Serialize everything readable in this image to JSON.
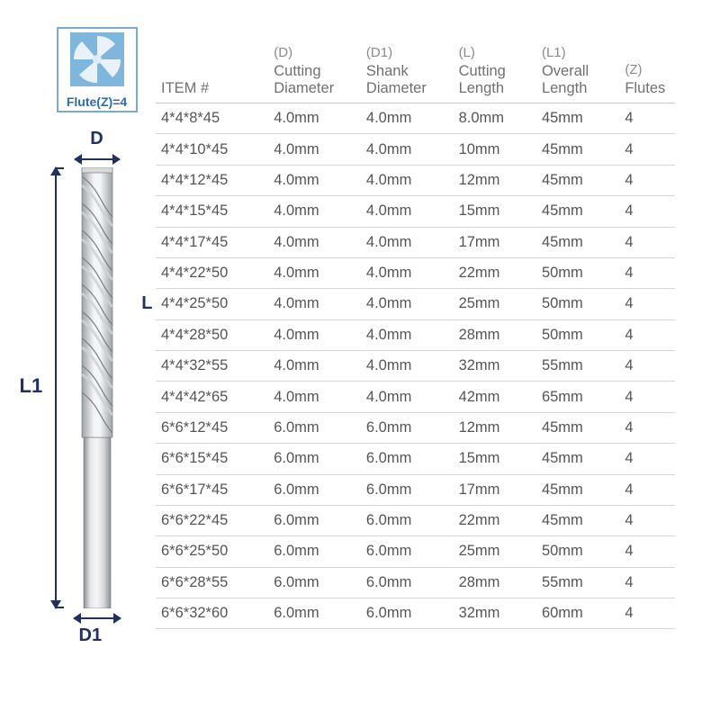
{
  "flute_box": {
    "label": "Flute(Z)=4"
  },
  "dimensions": {
    "D": "D",
    "D1": "D1",
    "L": "L",
    "L1": "L1"
  },
  "tool_diagram": {
    "shank_color_light": "#e9e9ea",
    "shank_color_mid": "#bfc3c6",
    "shank_color_dark": "#8c9094",
    "flute_color_light": "#f4f5f6",
    "flute_color_dark": "#9ea2a6",
    "outline": "#6f7276"
  },
  "flute_icon": {
    "bg": "#7fb7dc",
    "blade": "#e9f2f8",
    "center": "#dcecf6"
  },
  "headers": {
    "item": {
      "sup": "",
      "label": "ITEM #"
    },
    "d": {
      "sup": "(D)",
      "label1": "Cutting",
      "label2": "Diameter"
    },
    "d1": {
      "sup": "(D1)",
      "label1": "Shank",
      "label2": "Diameter"
    },
    "l": {
      "sup": "(L)",
      "label1": "Cutting",
      "label2": "Length"
    },
    "l1": {
      "sup": "(L1)",
      "label1": "Overall",
      "label2": "Length"
    },
    "z": {
      "sup": "(Z)",
      "label": "Flutes"
    }
  },
  "rows": [
    {
      "item": "4*4*8*45",
      "d": "4.0mm",
      "d1": "4.0mm",
      "l": "8.0mm",
      "l1": "45mm",
      "z": "4"
    },
    {
      "item": "4*4*10*45",
      "d": "4.0mm",
      "d1": "4.0mm",
      "l": "10mm",
      "l1": "45mm",
      "z": "4"
    },
    {
      "item": "4*4*12*45",
      "d": "4.0mm",
      "d1": "4.0mm",
      "l": "12mm",
      "l1": "45mm",
      "z": "4"
    },
    {
      "item": "4*4*15*45",
      "d": "4.0mm",
      "d1": "4.0mm",
      "l": "15mm",
      "l1": "45mm",
      "z": "4"
    },
    {
      "item": "4*4*17*45",
      "d": "4.0mm",
      "d1": "4.0mm",
      "l": "17mm",
      "l1": "45mm",
      "z": "4"
    },
    {
      "item": "4*4*22*50",
      "d": "4.0mm",
      "d1": "4.0mm",
      "l": "22mm",
      "l1": "50mm",
      "z": "4"
    },
    {
      "item": "4*4*25*50",
      "d": "4.0mm",
      "d1": "4.0mm",
      "l": "25mm",
      "l1": "50mm",
      "z": "4"
    },
    {
      "item": "4*4*28*50",
      "d": "4.0mm",
      "d1": "4.0mm",
      "l": "28mm",
      "l1": "50mm",
      "z": "4"
    },
    {
      "item": "4*4*32*55",
      "d": "4.0mm",
      "d1": "4.0mm",
      "l": "32mm",
      "l1": "55mm",
      "z": "4"
    },
    {
      "item": "4*4*42*65",
      "d": "4.0mm",
      "d1": "4.0mm",
      "l": "42mm",
      "l1": "65mm",
      "z": "4"
    },
    {
      "item": "6*6*12*45",
      "d": "6.0mm",
      "d1": "6.0mm",
      "l": "12mm",
      "l1": "45mm",
      "z": "4"
    },
    {
      "item": "6*6*15*45",
      "d": "6.0mm",
      "d1": "6.0mm",
      "l": "15mm",
      "l1": "45mm",
      "z": "4"
    },
    {
      "item": "6*6*17*45",
      "d": "6.0mm",
      "d1": "6.0mm",
      "l": "17mm",
      "l1": "45mm",
      "z": "4"
    },
    {
      "item": "6*6*22*45",
      "d": "6.0mm",
      "d1": "6.0mm",
      "l": "22mm",
      "l1": "45mm",
      "z": "4"
    },
    {
      "item": "6*6*25*50",
      "d": "6.0mm",
      "d1": "6.0mm",
      "l": "25mm",
      "l1": "50mm",
      "z": "4"
    },
    {
      "item": "6*6*28*55",
      "d": "6.0mm",
      "d1": "6.0mm",
      "l": "28mm",
      "l1": "55mm",
      "z": "4"
    },
    {
      "item": "6*6*32*60",
      "d": "6.0mm",
      "d1": "6.0mm",
      "l": "32mm",
      "l1": "60mm",
      "z": "4"
    }
  ],
  "colors": {
    "border_blue": "#7aa9d6",
    "label_blue": "#2b6cb0",
    "dim_navy": "#232f5e",
    "header_gray": "#707070",
    "cell_gray": "#555555",
    "row_border": "#d6d6d6"
  }
}
